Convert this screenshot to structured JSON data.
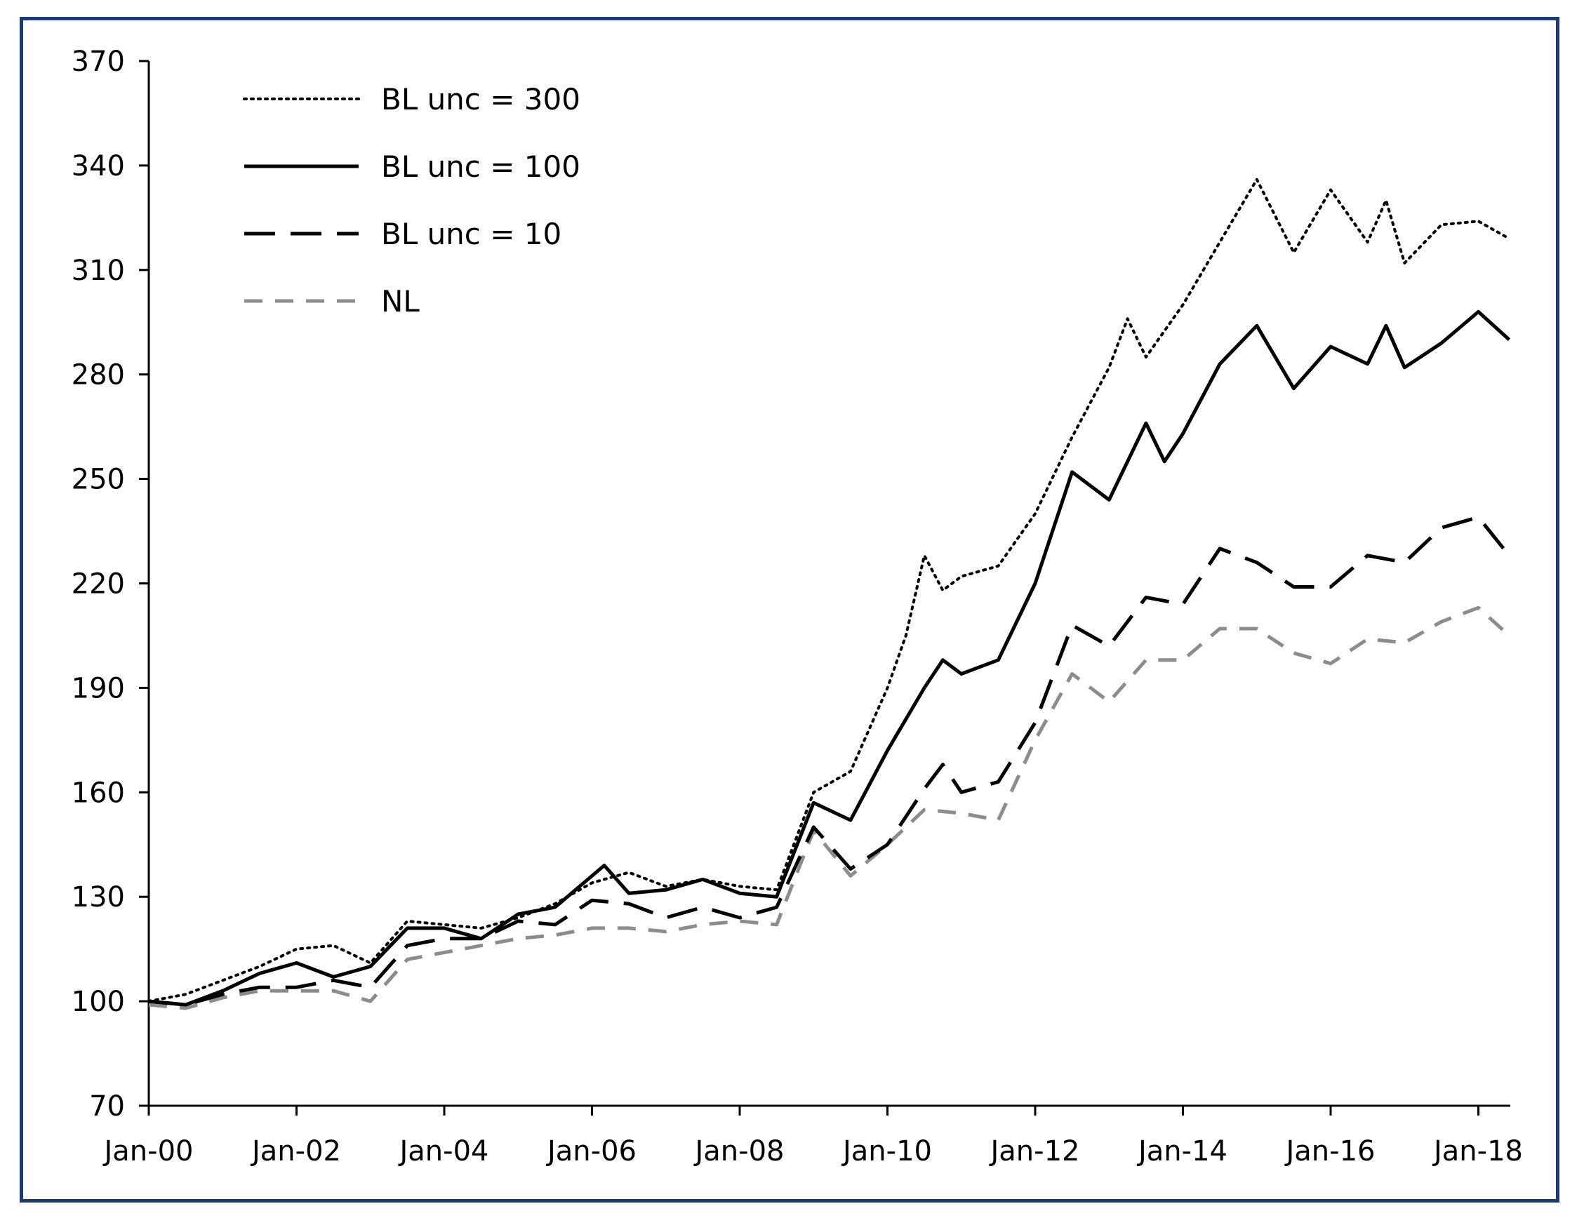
{
  "chart_data": {
    "type": "line",
    "title": "",
    "xlabel": "",
    "ylabel": "",
    "x_ticks": [
      "Jan-00",
      "Jan-02",
      "Jan-04",
      "Jan-06",
      "Jan-08",
      "Jan-10",
      "Jan-12",
      "Jan-14",
      "Jan-16",
      "Jan-18"
    ],
    "y_ticks": [
      "70",
      "100",
      "130",
      "160",
      "190",
      "220",
      "250",
      "280",
      "310",
      "340",
      "370"
    ],
    "ylim": [
      70,
      370
    ],
    "xlim": [
      "2000-01",
      "2018-06"
    ],
    "grid": false,
    "legend_position": "top-left",
    "series": [
      {
        "name": "BL unc = 300",
        "style": "dotted",
        "color": "#000000",
        "points": [
          [
            "2000-01",
            100
          ],
          [
            "2000-07",
            102
          ],
          [
            "2001-01",
            106
          ],
          [
            "2001-07",
            110
          ],
          [
            "2002-01",
            115
          ],
          [
            "2002-07",
            116
          ],
          [
            "2003-01",
            111
          ],
          [
            "2003-07",
            123
          ],
          [
            "2004-01",
            122
          ],
          [
            "2004-07",
            121
          ],
          [
            "2005-01",
            124
          ],
          [
            "2005-07",
            128
          ],
          [
            "2006-01",
            134
          ],
          [
            "2006-07",
            137
          ],
          [
            "2007-01",
            133
          ],
          [
            "2007-07",
            135
          ],
          [
            "2008-01",
            133
          ],
          [
            "2008-07",
            132
          ],
          [
            "2009-01",
            160
          ],
          [
            "2009-07",
            166
          ],
          [
            "2010-01",
            190
          ],
          [
            "2010-04",
            205
          ],
          [
            "2010-07",
            228
          ],
          [
            "2010-10",
            218
          ],
          [
            "2011-01",
            222
          ],
          [
            "2011-07",
            225
          ],
          [
            "2012-01",
            240
          ],
          [
            "2012-07",
            262
          ],
          [
            "2013-01",
            282
          ],
          [
            "2013-04",
            296
          ],
          [
            "2013-07",
            285
          ],
          [
            "2014-01",
            300
          ],
          [
            "2014-07",
            318
          ],
          [
            "2015-01",
            336
          ],
          [
            "2015-07",
            315
          ],
          [
            "2016-01",
            333
          ],
          [
            "2016-07",
            318
          ],
          [
            "2016-10",
            330
          ],
          [
            "2017-01",
            312
          ],
          [
            "2017-07",
            323
          ],
          [
            "2018-01",
            324
          ],
          [
            "2018-06",
            319
          ]
        ]
      },
      {
        "name": "BL unc = 100",
        "style": "solid",
        "color": "#000000",
        "points": [
          [
            "2000-01",
            100
          ],
          [
            "2000-07",
            99
          ],
          [
            "2001-01",
            103
          ],
          [
            "2001-07",
            108
          ],
          [
            "2002-01",
            111
          ],
          [
            "2002-07",
            107
          ],
          [
            "2003-01",
            110
          ],
          [
            "2003-07",
            121
          ],
          [
            "2004-01",
            121
          ],
          [
            "2004-07",
            118
          ],
          [
            "2005-01",
            125
          ],
          [
            "2005-07",
            127
          ],
          [
            "2006-01",
            136
          ],
          [
            "2006-03",
            139
          ],
          [
            "2006-07",
            131
          ],
          [
            "2007-01",
            132
          ],
          [
            "2007-07",
            135
          ],
          [
            "2008-01",
            131
          ],
          [
            "2008-07",
            130
          ],
          [
            "2009-01",
            157
          ],
          [
            "2009-07",
            152
          ],
          [
            "2010-01",
            172
          ],
          [
            "2010-07",
            190
          ],
          [
            "2010-10",
            198
          ],
          [
            "2011-01",
            194
          ],
          [
            "2011-07",
            198
          ],
          [
            "2012-01",
            220
          ],
          [
            "2012-07",
            252
          ],
          [
            "2013-01",
            244
          ],
          [
            "2013-07",
            266
          ],
          [
            "2013-10",
            255
          ],
          [
            "2014-01",
            263
          ],
          [
            "2014-07",
            283
          ],
          [
            "2015-01",
            294
          ],
          [
            "2015-07",
            276
          ],
          [
            "2016-01",
            288
          ],
          [
            "2016-07",
            283
          ],
          [
            "2016-10",
            294
          ],
          [
            "2017-01",
            282
          ],
          [
            "2017-07",
            289
          ],
          [
            "2018-01",
            298
          ],
          [
            "2018-06",
            290
          ]
        ]
      },
      {
        "name": "BL unc = 10",
        "style": "long-dash",
        "color": "#000000",
        "points": [
          [
            "2000-01",
            100
          ],
          [
            "2000-07",
            99
          ],
          [
            "2001-01",
            102
          ],
          [
            "2001-07",
            104
          ],
          [
            "2002-01",
            104
          ],
          [
            "2002-07",
            106
          ],
          [
            "2003-01",
            104
          ],
          [
            "2003-07",
            116
          ],
          [
            "2004-01",
            118
          ],
          [
            "2004-07",
            118
          ],
          [
            "2005-01",
            123
          ],
          [
            "2005-07",
            122
          ],
          [
            "2006-01",
            129
          ],
          [
            "2006-07",
            128
          ],
          [
            "2007-01",
            124
          ],
          [
            "2007-07",
            127
          ],
          [
            "2008-01",
            124
          ],
          [
            "2008-07",
            127
          ],
          [
            "2009-01",
            150
          ],
          [
            "2009-07",
            138
          ],
          [
            "2010-01",
            145
          ],
          [
            "2010-07",
            161
          ],
          [
            "2010-10",
            168
          ],
          [
            "2011-01",
            160
          ],
          [
            "2011-07",
            163
          ],
          [
            "2012-01",
            180
          ],
          [
            "2012-07",
            208
          ],
          [
            "2013-01",
            202
          ],
          [
            "2013-07",
            216
          ],
          [
            "2014-01",
            214
          ],
          [
            "2014-07",
            230
          ],
          [
            "2015-01",
            226
          ],
          [
            "2015-07",
            219
          ],
          [
            "2016-01",
            219
          ],
          [
            "2016-07",
            228
          ],
          [
            "2017-01",
            226
          ],
          [
            "2017-07",
            236
          ],
          [
            "2018-01",
            239
          ],
          [
            "2018-06",
            228
          ]
        ]
      },
      {
        "name": "NL",
        "style": "dashed",
        "color": "#8c8c8c",
        "points": [
          [
            "2000-01",
            99
          ],
          [
            "2000-07",
            98
          ],
          [
            "2001-01",
            101
          ],
          [
            "2001-07",
            103
          ],
          [
            "2002-01",
            103
          ],
          [
            "2002-07",
            103
          ],
          [
            "2003-01",
            100
          ],
          [
            "2003-07",
            112
          ],
          [
            "2004-01",
            114
          ],
          [
            "2004-07",
            116
          ],
          [
            "2005-01",
            118
          ],
          [
            "2005-07",
            119
          ],
          [
            "2006-01",
            121
          ],
          [
            "2006-07",
            121
          ],
          [
            "2007-01",
            120
          ],
          [
            "2007-07",
            122
          ],
          [
            "2008-01",
            123
          ],
          [
            "2008-07",
            122
          ],
          [
            "2009-01",
            149
          ],
          [
            "2009-07",
            136
          ],
          [
            "2010-01",
            145
          ],
          [
            "2010-07",
            155
          ],
          [
            "2011-01",
            154
          ],
          [
            "2011-07",
            152
          ],
          [
            "2012-01",
            175
          ],
          [
            "2012-07",
            194
          ],
          [
            "2013-01",
            186
          ],
          [
            "2013-07",
            198
          ],
          [
            "2014-01",
            198
          ],
          [
            "2014-07",
            207
          ],
          [
            "2015-01",
            207
          ],
          [
            "2015-07",
            200
          ],
          [
            "2016-01",
            197
          ],
          [
            "2016-07",
            204
          ],
          [
            "2017-01",
            203
          ],
          [
            "2017-07",
            209
          ],
          [
            "2018-01",
            213
          ],
          [
            "2018-06",
            205
          ]
        ]
      }
    ]
  }
}
